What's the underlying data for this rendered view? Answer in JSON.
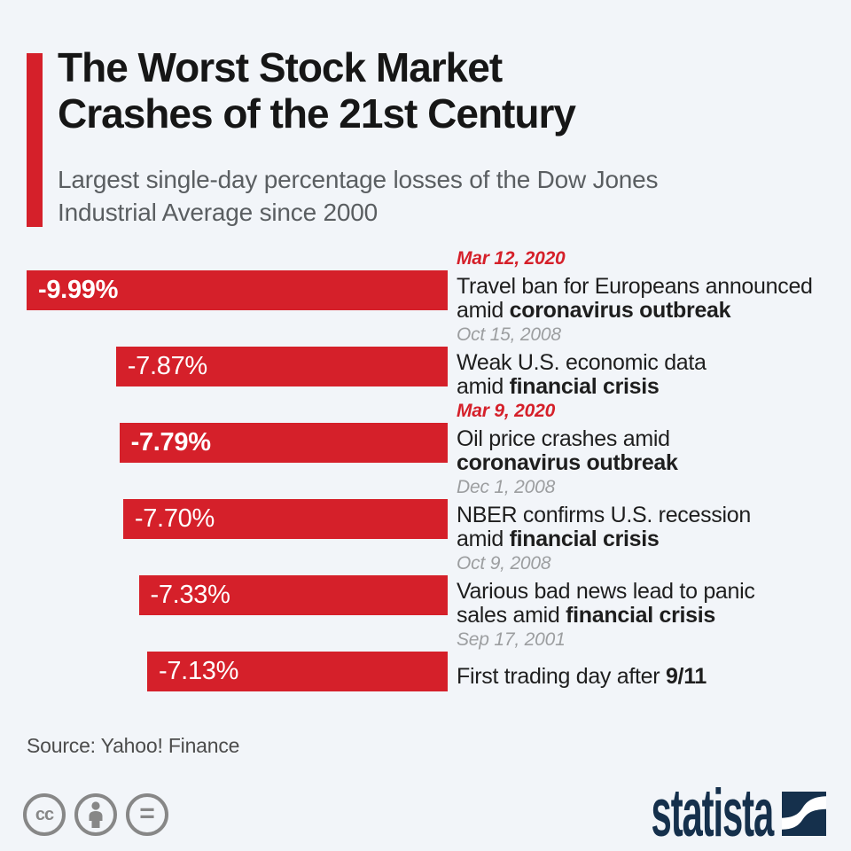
{
  "colors": {
    "background": "#f2f5f9",
    "bar_red": "#d5202a",
    "date_red": "#d5202a",
    "date_gray": "#9c9ea0",
    "title_black": "#161616",
    "subtitle_gray": "#5a5e61",
    "navy": "#15304c",
    "cc_gray": "#878787"
  },
  "header": {
    "title_line1": "The Worst Stock Market",
    "title_line2": "Crashes of the 21st Century",
    "subtitle_line1": "Largest single-day percentage losses of the Dow Jones",
    "subtitle_line2": "Industrial Average since 2000"
  },
  "rows": [
    {
      "date": "Mar 12, 2020",
      "highlight": true,
      "value": -9.99,
      "value_label": "-9.99%",
      "desc_lines": [
        [
          {
            "text": "Travel ban for Europeans announced",
            "bold": false
          }
        ],
        [
          {
            "text": "amid ",
            "bold": false
          },
          {
            "text": "coronavirus outbreak",
            "bold": true
          }
        ]
      ]
    },
    {
      "date": "Oct 15, 2008",
      "highlight": false,
      "value": -7.87,
      "value_label": "-7.87%",
      "desc_lines": [
        [
          {
            "text": "Weak U.S. economic data",
            "bold": false
          }
        ],
        [
          {
            "text": "amid ",
            "bold": false
          },
          {
            "text": "financial crisis",
            "bold": true
          }
        ]
      ]
    },
    {
      "date": "Mar 9, 2020",
      "highlight": true,
      "value": -7.79,
      "value_label": "-7.79%",
      "desc_lines": [
        [
          {
            "text": "Oil price crashes amid",
            "bold": false
          }
        ],
        [
          {
            "text": "coronavirus outbreak",
            "bold": true
          }
        ]
      ]
    },
    {
      "date": "Dec 1, 2008",
      "highlight": false,
      "value": -7.7,
      "value_label": "-7.70%",
      "desc_lines": [
        [
          {
            "text": "NBER confirms U.S. recession",
            "bold": false
          }
        ],
        [
          {
            "text": "amid ",
            "bold": false
          },
          {
            "text": "financial crisis",
            "bold": true
          }
        ]
      ]
    },
    {
      "date": "Oct 9, 2008",
      "highlight": false,
      "value": -7.33,
      "value_label": "-7.33%",
      "desc_lines": [
        [
          {
            "text": "Various bad news lead to panic",
            "bold": false
          }
        ],
        [
          {
            "text": "sales amid ",
            "bold": false
          },
          {
            "text": "financial crisis",
            "bold": true
          }
        ]
      ]
    },
    {
      "date": "Sep 17, 2001",
      "highlight": false,
      "value": -7.13,
      "value_label": "-7.13%",
      "desc_lines": [
        [
          {
            "text": "First trading day after ",
            "bold": false
          },
          {
            "text": "9/11",
            "bold": true
          }
        ]
      ]
    }
  ],
  "footer": {
    "source": "Source: Yahoo! Finance",
    "cc_icons": [
      "cc-icon",
      "attribution-person-icon",
      "equals-icon"
    ],
    "brand_wordmark": "statista"
  },
  "chart_data": {
    "type": "bar",
    "orientation": "horizontal",
    "title": "The Worst Stock Market Crashes of the 21st Century",
    "subtitle": "Largest single-day percentage losses of the Dow Jones Industrial Average since 2000",
    "source": "Source: Yahoo! Finance",
    "categories": [
      "Mar 12, 2020",
      "Oct 15, 2008",
      "Mar 9, 2020",
      "Dec 1, 2008",
      "Oct 9, 2008",
      "Sep 17, 2001"
    ],
    "values": [
      -9.99,
      -7.87,
      -7.79,
      -7.7,
      -7.33,
      -7.13
    ],
    "value_labels": [
      "-9.99%",
      "-7.87%",
      "-7.79%",
      "-7.70%",
      "-7.33%",
      "-7.13%"
    ],
    "annotations": [
      "Travel ban for Europeans announced amid coronavirus outbreak",
      "Weak U.S. economic data amid financial crisis",
      "Oil price crashes amid coronavirus outbreak",
      "NBER confirms U.S. recession amid financial crisis",
      "Various bad news lead to panic sales amid financial crisis",
      "First trading day after 9/11"
    ],
    "highlighted_categories": [
      "Mar 12, 2020",
      "Mar 9, 2020"
    ],
    "max_abs_value": 9.99,
    "bar_color": "#d5202a",
    "grid": false,
    "legend": false
  }
}
